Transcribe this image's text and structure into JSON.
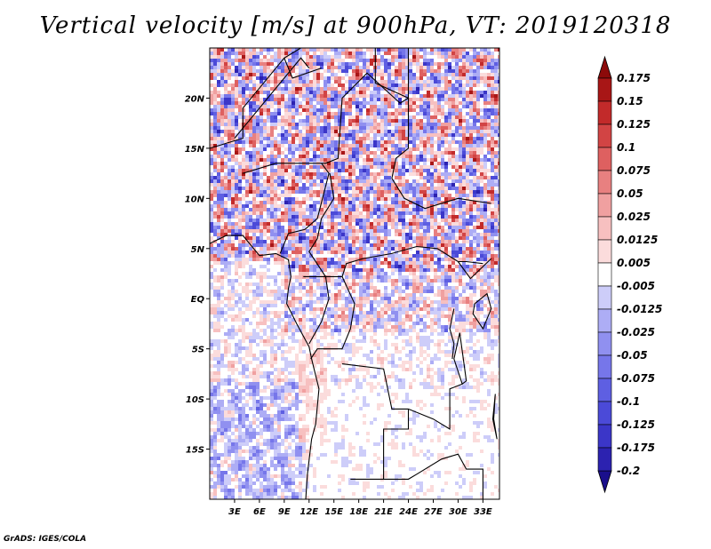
{
  "title": "Vertical velocity [m/s] at 900hPa, VT: 2019120318",
  "credit": "GrADS: IGES/COLA",
  "chart_data": {
    "type": "heatmap",
    "variable": "Vertical velocity",
    "units": "m/s",
    "level": "900hPa",
    "valid_time": "2019120318",
    "x_range_deg": [
      0,
      35
    ],
    "y_range_deg": [
      -20,
      25
    ],
    "x_ticks": [
      "3E",
      "6E",
      "9E",
      "12E",
      "15E",
      "18E",
      "21E",
      "24E",
      "27E",
      "30E",
      "33E"
    ],
    "x_tick_values": [
      3,
      6,
      9,
      12,
      15,
      18,
      21,
      24,
      27,
      30,
      33
    ],
    "y_ticks": [
      "20N",
      "15N",
      "10N",
      "5N",
      "EQ",
      "5S",
      "10S",
      "15S"
    ],
    "y_tick_values": [
      20,
      15,
      10,
      5,
      0,
      -5,
      -10,
      -15
    ],
    "colorbar": {
      "levels": [
        "-0.2",
        "-0.175",
        "-0.125",
        "-0.1",
        "-0.075",
        "-0.05",
        "-0.025",
        "-0.0125",
        "-0.005",
        "0.005",
        "0.0125",
        "0.025",
        "0.05",
        "0.075",
        "0.1",
        "0.125",
        "0.15",
        "0.175"
      ],
      "colors": [
        "#1a0f8c",
        "#2c22b0",
        "#3b36c8",
        "#4b4ad8",
        "#5e5fe2",
        "#7676ea",
        "#9090f0",
        "#adadf5",
        "#cdcdf9",
        "#ffffff",
        "#fbdcdc",
        "#f7c0c0",
        "#f0a0a0",
        "#e88080",
        "#de6060",
        "#d24444",
        "#c22a2a",
        "#a81616",
        "#8c0a0a"
      ],
      "orientation": "vertical",
      "placement": "right",
      "arrows": "both ends"
    },
    "description_regions": {
      "map_area": "Central Africa and Gulf of Guinea, 0E-35E, 20S-25N",
      "pattern": "Dense mix of upward (red) and downward (blue) motion over land north of the equator, weak values over ocean and southern Africa"
    }
  }
}
